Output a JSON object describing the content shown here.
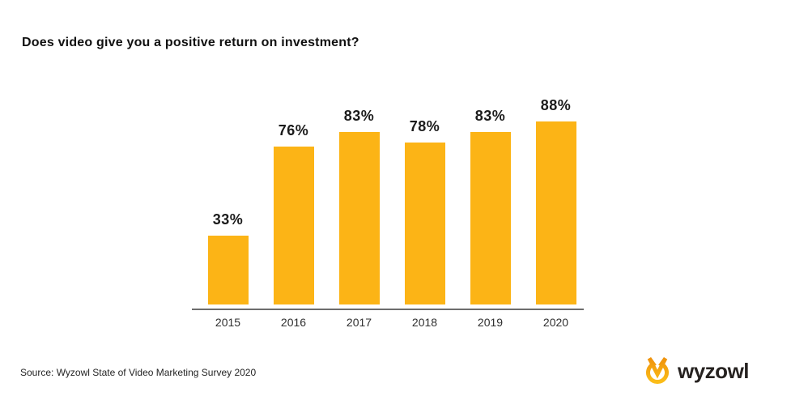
{
  "page": {
    "title": "Does video give you a positive return on investment?",
    "source_note": "Source: Wyzowl State of Video Marketing Survey 2020",
    "brand": {
      "name": "wyzowl",
      "icon": "wyzowl-owl-icon",
      "icon_color_top": "#EF920C",
      "icon_color_bottom": "#FBBD18",
      "wordmark_color": "#262220"
    }
  },
  "chart_data": {
    "type": "bar",
    "title": "Does video give you a positive return on investment?",
    "categories": [
      "2015",
      "2016",
      "2017",
      "2018",
      "2019",
      "2020"
    ],
    "values": [
      33,
      76,
      83,
      78,
      83,
      88
    ],
    "value_labels": [
      "33%",
      "76%",
      "83%",
      "78%",
      "83%",
      "88%"
    ],
    "unit": "%",
    "ylim": [
      0,
      100
    ],
    "xlabel": "",
    "ylabel": "",
    "grid": false,
    "legend": "none",
    "bar_color": "#FCB416",
    "value_label_position": "above-bar",
    "axis_line_color": "#6d6d6d"
  }
}
